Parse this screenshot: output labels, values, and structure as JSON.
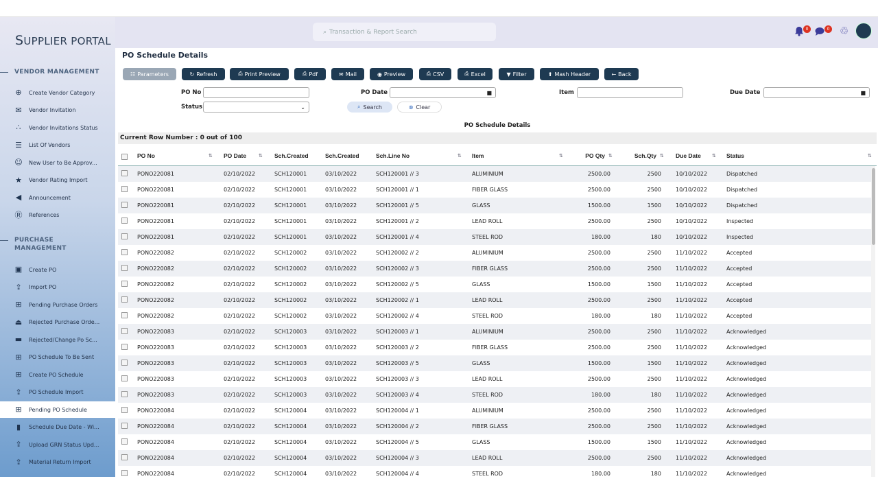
{
  "brand": {
    "first": "S",
    "rest": "UPPLIER PORTAL"
  },
  "sidebar": {
    "sections": [
      {
        "label": "VENDOR MANAGEMENT"
      },
      {
        "label": "PURCHASE",
        "label2": "MANAGEMENT"
      }
    ],
    "vendor_items": [
      {
        "label": "Create Vendor Category",
        "icon": "plus-circle-icon"
      },
      {
        "label": "Vendor Invitation",
        "icon": "envelope-icon"
      },
      {
        "label": "Vendor Invitations Status",
        "icon": "spinner-icon"
      },
      {
        "label": "List Of Vendors",
        "icon": "list-icon"
      },
      {
        "label": "New User to Be Approv...",
        "icon": "users-icon"
      },
      {
        "label": "Vendor Rating Import",
        "icon": "star-icon"
      },
      {
        "label": "Announcement",
        "icon": "bullhorn-icon"
      },
      {
        "label": "References",
        "icon": "r-circle-icon"
      }
    ],
    "purchase_items": [
      {
        "label": "Create PO",
        "icon": "contact-card-icon"
      },
      {
        "label": "Import PO",
        "icon": "upload-icon"
      },
      {
        "label": "Pending Purchase Orders",
        "icon": "table-icon"
      },
      {
        "label": "Rejected Purchase Orde...",
        "icon": "eject-icon"
      },
      {
        "label": "Rejected/Change Po Sc...",
        "icon": "folder-icon"
      },
      {
        "label": "PO Schedule To Be Sent",
        "icon": "table-icon"
      },
      {
        "label": "Create PO Schedule",
        "icon": "plus-square-icon"
      },
      {
        "label": "PO Schedule Import",
        "icon": "upload-icon"
      },
      {
        "label": "Pending PO Schedule",
        "icon": "table-icon",
        "active": true
      },
      {
        "label": "Schedule Due Date - Wi...",
        "icon": "file-icon"
      },
      {
        "label": "Upload GRN Status Upd...",
        "icon": "upload-icon"
      },
      {
        "label": "Material Return Import",
        "icon": "upload-icon"
      }
    ]
  },
  "header": {
    "search_placeholder": "Transaction & Report Search",
    "notifications": "0",
    "messages": "0"
  },
  "page": {
    "title": "PO Schedule Details"
  },
  "toolbar": [
    "Parameters",
    "Refresh",
    "Print Preview",
    "Pdf",
    "Mail",
    "Preview",
    "CSV",
    "Excel",
    "Filter",
    "Mash Header",
    "Back"
  ],
  "filters": {
    "po_no_label": "PO No",
    "status_label": "Status",
    "po_date_label": "PO Date",
    "item_label": "Item",
    "due_date_label": "Due Date",
    "po_no": "",
    "status": "",
    "po_date": "",
    "item": "",
    "due_date": "",
    "search": "Search",
    "clear": "Clear"
  },
  "table": {
    "caption": "PO Schedule Details",
    "row_count": "Current Row Number : 0 out of 100",
    "columns": [
      "PO No",
      "PO Date",
      "Sch.Created",
      "Sch.Created",
      "Sch.Line No",
      "Item",
      "PO Qty",
      "Sch.Qty",
      "Due Date",
      "Status"
    ],
    "rows": [
      [
        "PONO220081",
        "02/10/2022",
        "SCH120001",
        "03/10/2022",
        "SCH120001 // 3",
        "ALUMINIUM",
        "2500.00",
        "2500",
        "10/10/2022",
        "Dispatched"
      ],
      [
        "PONO220081",
        "02/10/2022",
        "SCH120001",
        "03/10/2022",
        "SCH120001 // 1",
        "FIBER GLASS",
        "2500.00",
        "2500",
        "10/10/2022",
        "Dispatched"
      ],
      [
        "PONO220081",
        "02/10/2022",
        "SCH120001",
        "03/10/2022",
        "SCH120001 // 5",
        "GLASS",
        "1500.00",
        "1500",
        "10/10/2022",
        "Dispatched"
      ],
      [
        "PONO220081",
        "02/10/2022",
        "SCH120001",
        "03/10/2022",
        "SCH120001 // 2",
        "LEAD ROLL",
        "2500.00",
        "2500",
        "10/10/2022",
        "Inspected"
      ],
      [
        "PONO220081",
        "02/10/2022",
        "SCH120001",
        "03/10/2022",
        "SCH120001 // 4",
        "STEEL ROD",
        "180.00",
        "180",
        "10/10/2022",
        "Inspected"
      ],
      [
        "PONO220082",
        "02/10/2022",
        "SCH120002",
        "03/10/2022",
        "SCH120002 // 2",
        "ALUMINIUM",
        "2500.00",
        "2500",
        "11/10/2022",
        "Accepted"
      ],
      [
        "PONO220082",
        "02/10/2022",
        "SCH120002",
        "03/10/2022",
        "SCH120002 // 3",
        "FIBER GLASS",
        "2500.00",
        "2500",
        "11/10/2022",
        "Accepted"
      ],
      [
        "PONO220082",
        "02/10/2022",
        "SCH120002",
        "03/10/2022",
        "SCH120002 // 5",
        "GLASS",
        "1500.00",
        "1500",
        "11/10/2022",
        "Accepted"
      ],
      [
        "PONO220082",
        "02/10/2022",
        "SCH120002",
        "03/10/2022",
        "SCH120002 // 1",
        "LEAD ROLL",
        "2500.00",
        "2500",
        "11/10/2022",
        "Accepted"
      ],
      [
        "PONO220082",
        "02/10/2022",
        "SCH120002",
        "03/10/2022",
        "SCH120002 // 4",
        "STEEL ROD",
        "180.00",
        "180",
        "11/10/2022",
        "Accepted"
      ],
      [
        "PONO220083",
        "02/10/2022",
        "SCH120003",
        "03/10/2022",
        "SCH120003 // 1",
        "ALUMINIUM",
        "2500.00",
        "2500",
        "11/10/2022",
        "Acknowledged"
      ],
      [
        "PONO220083",
        "02/10/2022",
        "SCH120003",
        "03/10/2022",
        "SCH120003 // 2",
        "FIBER GLASS",
        "2500.00",
        "2500",
        "11/10/2022",
        "Acknowledged"
      ],
      [
        "PONO220083",
        "02/10/2022",
        "SCH120003",
        "03/10/2022",
        "SCH120003 // 5",
        "GLASS",
        "1500.00",
        "1500",
        "11/10/2022",
        "Acknowledged"
      ],
      [
        "PONO220083",
        "02/10/2022",
        "SCH120003",
        "03/10/2022",
        "SCH120003 // 3",
        "LEAD ROLL",
        "2500.00",
        "2500",
        "11/10/2022",
        "Acknowledged"
      ],
      [
        "PONO220083",
        "02/10/2022",
        "SCH120003",
        "03/10/2022",
        "SCH120003 // 4",
        "STEEL ROD",
        "180.00",
        "180",
        "11/10/2022",
        "Acknowledged"
      ],
      [
        "PONO220084",
        "02/10/2022",
        "SCH120004",
        "03/10/2022",
        "SCH120004 // 1",
        "ALUMINIUM",
        "2500.00",
        "2500",
        "11/10/2022",
        "Acknowledged"
      ],
      [
        "PONO220084",
        "02/10/2022",
        "SCH120004",
        "03/10/2022",
        "SCH120004 // 2",
        "FIBER GLASS",
        "2500.00",
        "2500",
        "11/10/2022",
        "Acknowledged"
      ],
      [
        "PONO220084",
        "02/10/2022",
        "SCH120004",
        "03/10/2022",
        "SCH120004 // 5",
        "GLASS",
        "1500.00",
        "1500",
        "11/10/2022",
        "Acknowledged"
      ],
      [
        "PONO220084",
        "02/10/2022",
        "SCH120004",
        "03/10/2022",
        "SCH120004 // 3",
        "LEAD ROLL",
        "2500.00",
        "2500",
        "11/10/2022",
        "Acknowledged"
      ],
      [
        "PONO220084",
        "02/10/2022",
        "SCH120004",
        "03/10/2022",
        "SCH120004 // 4",
        "STEEL ROD",
        "180.00",
        "180",
        "11/10/2022",
        "Acknowledged"
      ]
    ]
  },
  "colors": {
    "primary": "#1e3a52",
    "badge": "#dd3322",
    "active_bg": "#ffffff"
  }
}
